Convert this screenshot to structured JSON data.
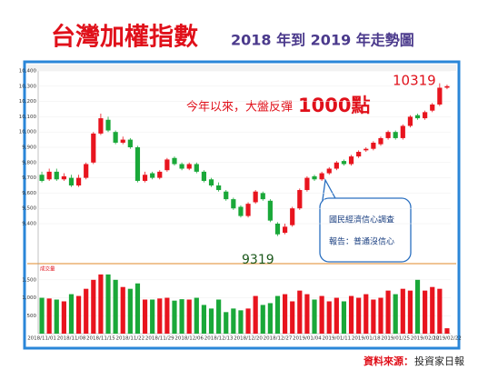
{
  "chart_data": {
    "type": "candlestick",
    "title": "台灣加權指數",
    "subtitle": "2018 年到 2019 年走勢圖",
    "categories": [
      "2018/11/01",
      null,
      null,
      null,
      "2018/11/08",
      null,
      null,
      null,
      "2018/11/15",
      null,
      null,
      null,
      "2018/11/22",
      null,
      null,
      null,
      "2018/11/29",
      null,
      null,
      null,
      "2018/12/06",
      null,
      null,
      null,
      "2018/12/13",
      null,
      null,
      null,
      "2018/12/20",
      null,
      null,
      null,
      "2018/12/27",
      null,
      null,
      null,
      "2019/01/04",
      null,
      null,
      null,
      "2019/01/11",
      null,
      null,
      null,
      "2019/01/18",
      null,
      null,
      null,
      "2019/01/25",
      null,
      null,
      null,
      "2019/02/12",
      null,
      null,
      "2019/02/22"
    ],
    "open": [
      9720,
      9690,
      9740,
      9690,
      9700,
      9650,
      9700,
      9800,
      9990,
      10080,
      10000,
      9930,
      9950,
      9900,
      9680,
      9730,
      9700,
      9750,
      9830,
      9790,
      9760,
      9790,
      9740,
      9690,
      9650,
      9610,
      9560,
      9510,
      9450,
      9540,
      9600,
      9550,
      9400,
      9340,
      9390,
      9500,
      9620,
      9710,
      9690,
      9730,
      9760,
      9810,
      9790,
      9840,
      9880,
      9890,
      9920,
      9960,
      10000,
      9960,
      10040,
      10110,
      10090,
      10140,
      10180,
      10290
    ],
    "high": [
      9740,
      9760,
      9760,
      9730,
      9720,
      9720,
      9800,
      10000,
      10120,
      10100,
      10010,
      9970,
      9960,
      9910,
      9740,
      9740,
      9750,
      9830,
      9840,
      9800,
      9800,
      9800,
      9750,
      9700,
      9670,
      9620,
      9570,
      9520,
      9540,
      9620,
      9610,
      9560,
      9410,
      9400,
      9510,
      9630,
      9710,
      9720,
      9740,
      9770,
      9810,
      9820,
      9850,
      9880,
      9900,
      9940,
      9970,
      10010,
      10010,
      10050,
      10110,
      10120,
      10140,
      10190,
      10319,
      10310
    ],
    "low": [
      9670,
      9680,
      9680,
      9680,
      9640,
      9640,
      9690,
      9790,
      9980,
      10000,
      9920,
      9920,
      9890,
      9670,
      9670,
      9690,
      9690,
      9740,
      9780,
      9750,
      9750,
      9730,
      9670,
      9640,
      9610,
      9550,
      9490,
      9440,
      9440,
      9530,
      9550,
      9410,
      9319,
      9330,
      9380,
      9490,
      9610,
      9680,
      9680,
      9720,
      9750,
      9780,
      9780,
      9830,
      9870,
      9880,
      9910,
      9950,
      9950,
      9950,
      10030,
      10080,
      10080,
      10130,
      10170,
      10280
    ],
    "close": [
      9680,
      9740,
      9690,
      9710,
      9650,
      9700,
      9790,
      9990,
      10090,
      10010,
      9930,
      9950,
      9900,
      9680,
      9720,
      9700,
      9740,
      9820,
      9790,
      9760,
      9790,
      9740,
      9680,
      9650,
      9620,
      9560,
      9500,
      9450,
      9530,
      9610,
      9560,
      9420,
      9330,
      9380,
      9500,
      9620,
      9700,
      9690,
      9730,
      9760,
      9800,
      9790,
      9840,
      9870,
      9890,
      9930,
      9960,
      10000,
      9960,
      10040,
      10100,
      10090,
      10130,
      10180,
      10290,
      10300
    ],
    "volume": [
      1000,
      980,
      950,
      900,
      1100,
      1050,
      1250,
      1500,
      1650,
      1650,
      1500,
      1300,
      1250,
      1400,
      950,
      950,
      980,
      1000,
      920,
      960,
      950,
      1000,
      800,
      700,
      950,
      600,
      700,
      650,
      700,
      1050,
      800,
      850,
      1050,
      1100,
      900,
      1200,
      1100,
      950,
      1050,
      900,
      1000,
      900,
      1050,
      1000,
      1100,
      950,
      1000,
      1200,
      1100,
      1250,
      1200,
      1500,
      1200,
      1300,
      1250,
      150
    ],
    "up_color": "#e8141e",
    "down_color": "#1aa839",
    "ylim": [
      9150,
      10400
    ],
    "yticks": [
      {
        "value": 9400,
        "label": "9,400"
      },
      {
        "value": 9500,
        "label": "9,500"
      },
      {
        "value": 9600,
        "label": "9,600"
      },
      {
        "value": 9700,
        "label": "9,700"
      },
      {
        "value": 9800,
        "label": "9,800"
      },
      {
        "value": 9900,
        "label": "9,900"
      },
      {
        "value": 10000,
        "label": "10,000"
      },
      {
        "value": 10100,
        "label": "10,100"
      },
      {
        "value": 10200,
        "label": "10,200"
      },
      {
        "value": 10300,
        "label": "10,300"
      },
      {
        "value": 10400,
        "label": "10,400"
      }
    ],
    "volume_label": "成交量",
    "volume_ylim": [
      0,
      1850
    ],
    "volume_yticks": [
      500,
      {
        "value": 1000,
        "label": "1,000"
      },
      {
        "value": 1500,
        "label": "1,500"
      }
    ],
    "annotations": {
      "high": "10319",
      "low": "9319",
      "headline": "今年以來，大盤反彈",
      "headline_emph": "1000點",
      "callout": [
        "國民經濟信心調查",
        "報告：普通沒信心"
      ]
    },
    "source_label": "資料來源：",
    "source": "投資家日報"
  }
}
